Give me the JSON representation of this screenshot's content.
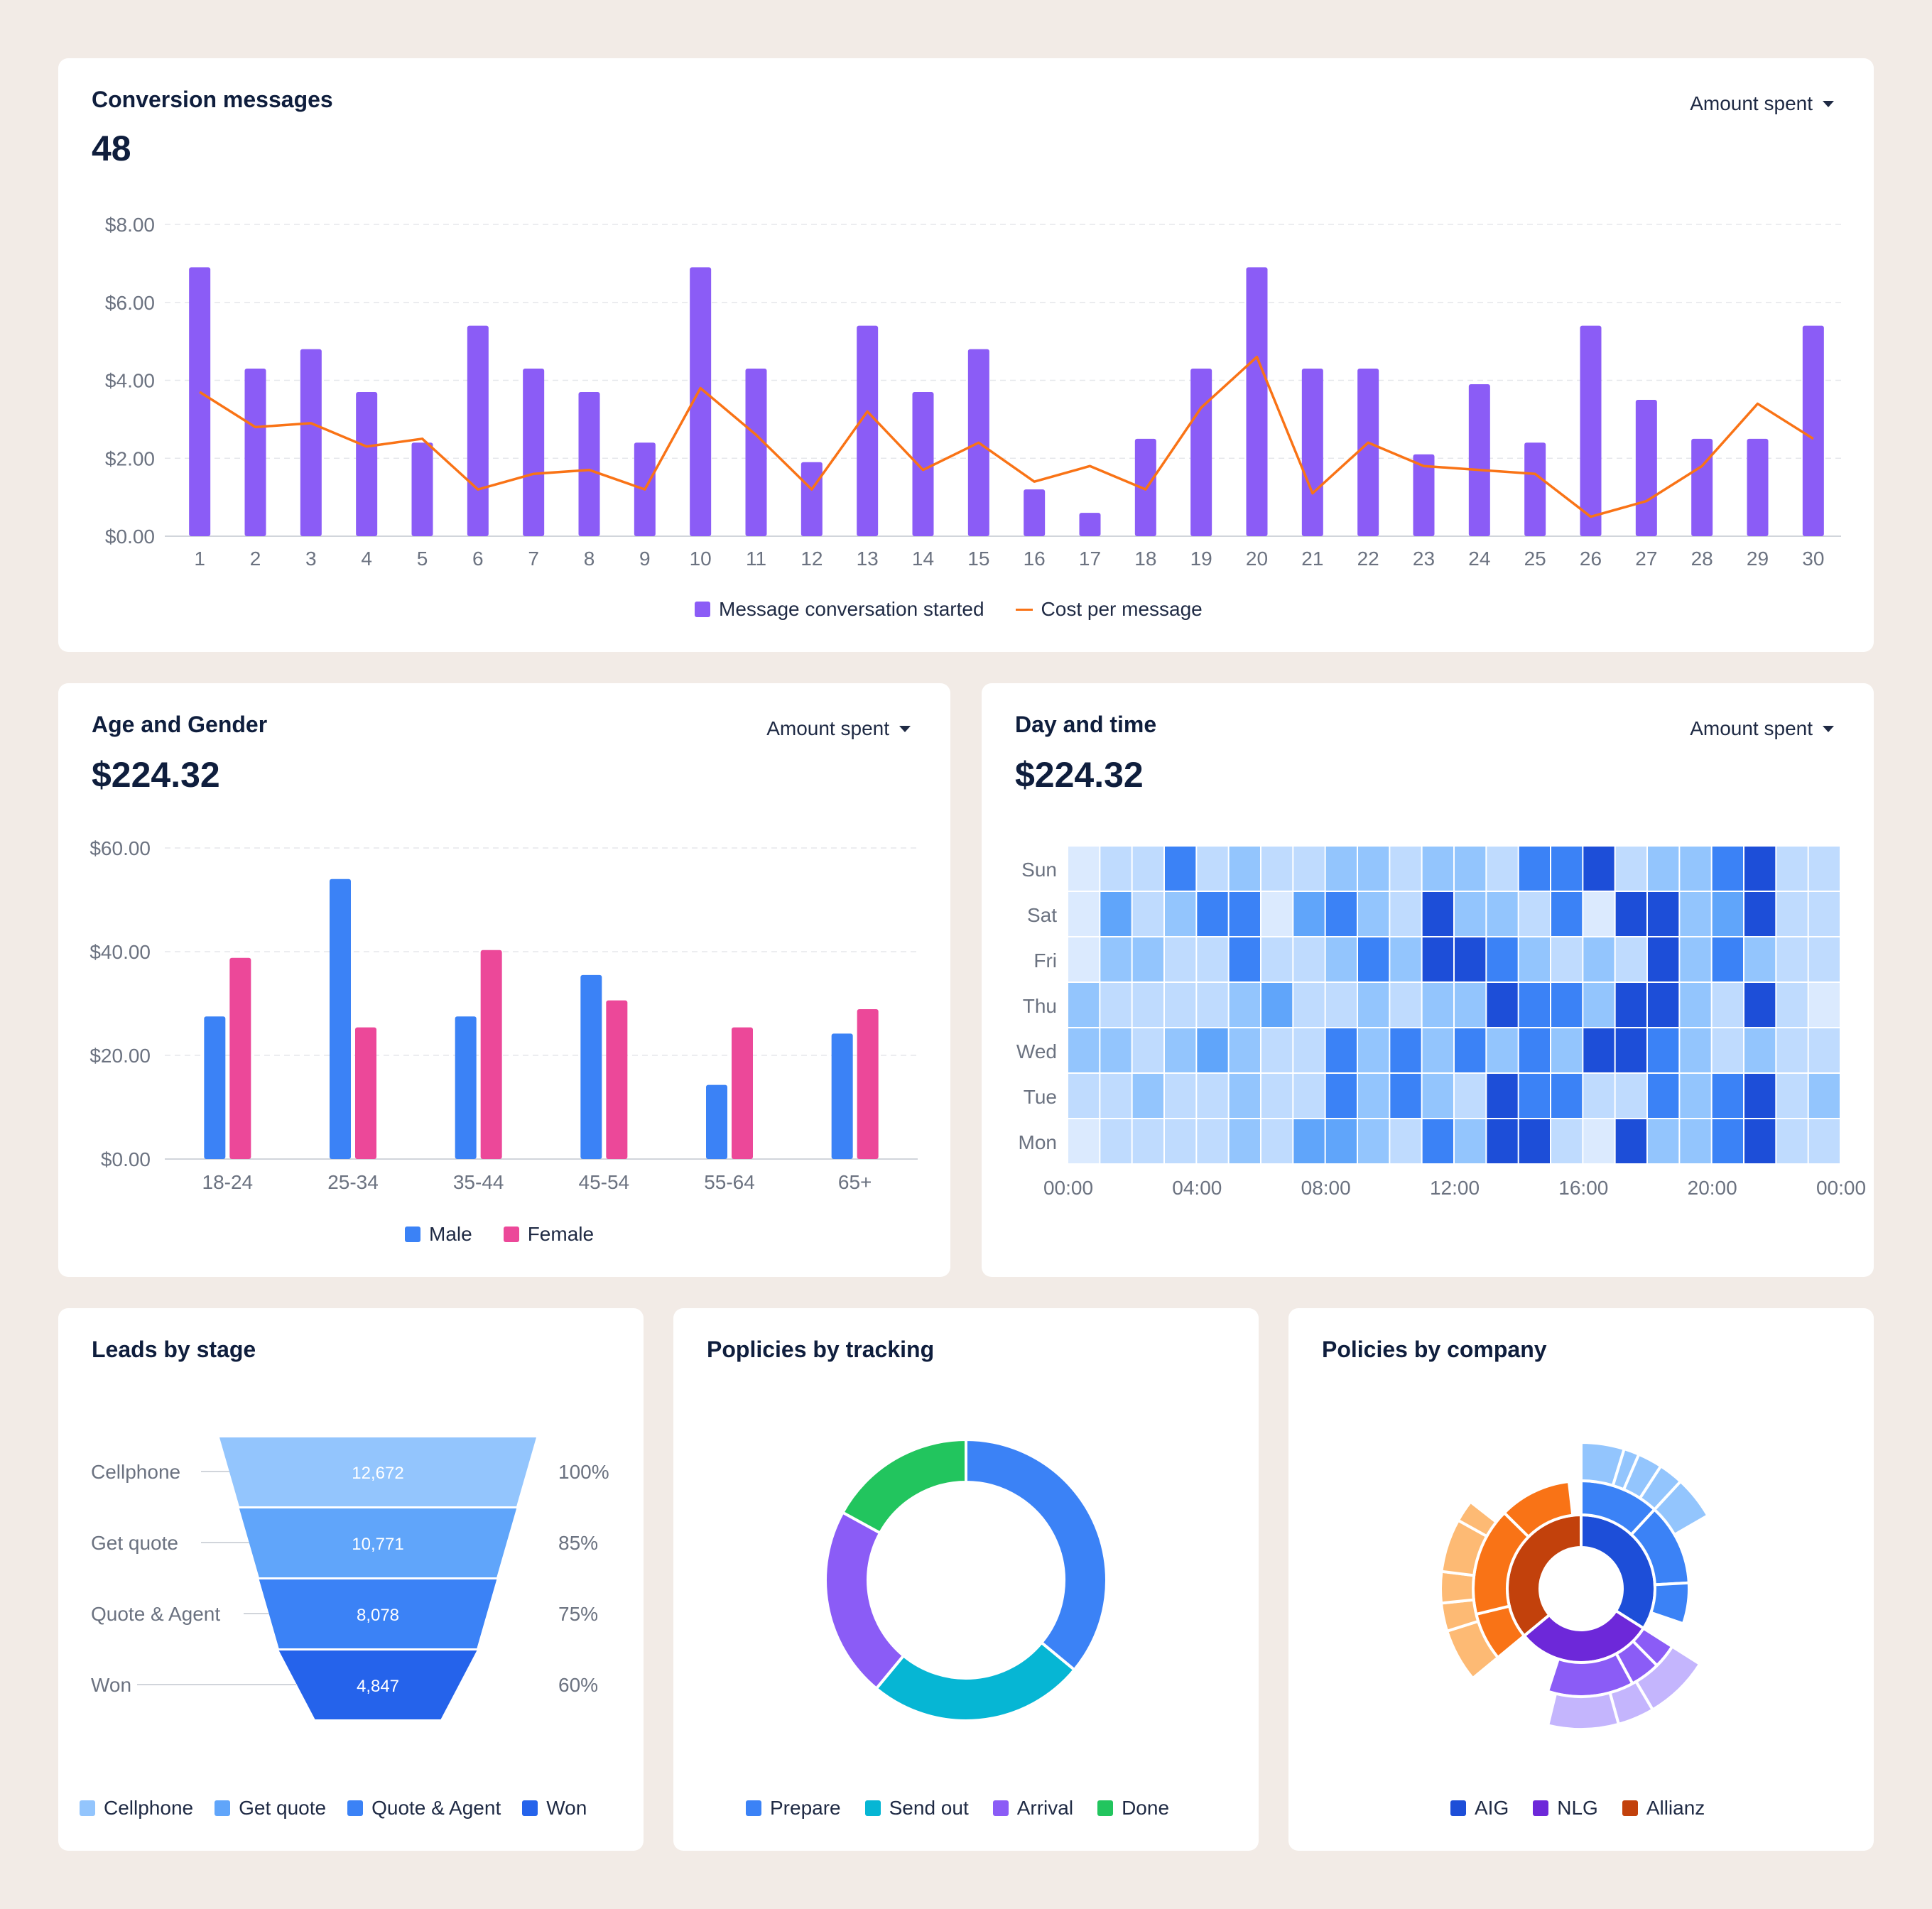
{
  "conversion": {
    "title": "Conversion messages",
    "value": "48",
    "dropdown": "Amount spent",
    "legend": {
      "bars": "Message conversation started",
      "line": "Cost per message"
    },
    "colors": {
      "bar": "#8b5cf6",
      "line": "#f97316"
    }
  },
  "age_gender": {
    "title": "Age and Gender",
    "value": "$224.32",
    "dropdown": "Amount spent",
    "legend": {
      "male": "Male",
      "female": "Female"
    },
    "colors": {
      "male": "#3b82f6",
      "female": "#ec4899"
    }
  },
  "day_time": {
    "title": "Day and time",
    "value": "$224.32",
    "dropdown": "Amount spent"
  },
  "leads": {
    "title": "Leads by stage",
    "legend": [
      "Cellphone",
      "Get quote",
      "Quote & Agent",
      "Won"
    ],
    "colors": [
      "#93c5fd",
      "#60a5fa",
      "#3b82f6",
      "#2563eb"
    ]
  },
  "tracking": {
    "title": "Poplicies by tracking",
    "legend": [
      "Prepare",
      "Send out",
      "Arrival",
      "Done"
    ],
    "colors": [
      "#3b82f6",
      "#06b6d4",
      "#8b5cf6",
      "#22c55e"
    ]
  },
  "company": {
    "title": "Policies by company",
    "legend": [
      "AIG",
      "NLG",
      "Allianz"
    ],
    "colors": [
      "#1d4ed8",
      "#6d28d9",
      "#c2410c"
    ]
  },
  "chart_data": [
    {
      "type": "bar",
      "id": "conversion",
      "categories": [
        "1",
        "2",
        "3",
        "4",
        "5",
        "6",
        "7",
        "8",
        "9",
        "10",
        "11",
        "12",
        "13",
        "14",
        "15",
        "16",
        "17",
        "18",
        "19",
        "20",
        "21",
        "22",
        "23",
        "24",
        "25",
        "26",
        "27",
        "28",
        "29",
        "30"
      ],
      "series": [
        {
          "name": "Message conversation started",
          "type": "bar",
          "values": [
            6.9,
            4.3,
            4.8,
            3.7,
            2.4,
            5.4,
            4.3,
            3.7,
            2.4,
            6.9,
            4.3,
            1.9,
            5.4,
            3.7,
            4.8,
            1.2,
            0.6,
            2.5,
            4.3,
            6.9,
            4.3,
            4.3,
            2.1,
            3.9,
            2.4,
            5.4,
            3.5,
            2.5,
            2.5,
            5.4
          ]
        },
        {
          "name": "Cost per message",
          "type": "line",
          "values": [
            3.7,
            2.8,
            2.9,
            2.3,
            2.5,
            1.2,
            1.6,
            1.7,
            1.2,
            3.8,
            2.6,
            1.2,
            3.2,
            1.7,
            2.4,
            1.4,
            1.8,
            1.2,
            3.3,
            4.6,
            1.1,
            2.4,
            1.8,
            1.7,
            1.6,
            0.5,
            0.9,
            1.8,
            3.4,
            2.5
          ]
        }
      ],
      "ylim": [
        0,
        8
      ],
      "yticks": [
        "$0.00",
        "$2.00",
        "$4.00",
        "$6.00",
        "$8.00"
      ],
      "grid": true
    },
    {
      "type": "bar",
      "id": "age_gender",
      "categories": [
        "18-24",
        "25-34",
        "35-44",
        "45-54",
        "55-64",
        "65+"
      ],
      "series": [
        {
          "name": "Male",
          "values": [
            27.5,
            54,
            27.5,
            35.5,
            14.3,
            24.2
          ]
        },
        {
          "name": "Female",
          "values": [
            38.8,
            25.4,
            40.3,
            30.6,
            25.4,
            28.9
          ]
        }
      ],
      "ylim": [
        0,
        60
      ],
      "yticks": [
        "$0.00",
        "$20.00",
        "$40.00",
        "$60.00"
      ],
      "grid": true
    },
    {
      "type": "heatmap",
      "id": "day_time",
      "rows": [
        "Sun",
        "Sat",
        "Fri",
        "Thu",
        "Wed",
        "Tue",
        "Mon"
      ],
      "x_ticks": [
        "00:00",
        "04:00",
        "08:00",
        "12:00",
        "16:00",
        "20:00",
        "00:00"
      ],
      "levels": [
        [
          0,
          1,
          1,
          4,
          1,
          2,
          1,
          1,
          2,
          2,
          1,
          2,
          2,
          1,
          4,
          4,
          5,
          1,
          2,
          2,
          4,
          5,
          1,
          1
        ],
        [
          0,
          3,
          1,
          2,
          4,
          4,
          0,
          3,
          4,
          2,
          1,
          5,
          2,
          2,
          1,
          4,
          0,
          5,
          5,
          2,
          3,
          5,
          1,
          1
        ],
        [
          0,
          2,
          2,
          1,
          1,
          4,
          1,
          1,
          2,
          4,
          2,
          5,
          5,
          4,
          2,
          1,
          2,
          1,
          5,
          2,
          4,
          2,
          1,
          1
        ],
        [
          2,
          1,
          1,
          1,
          1,
          2,
          3,
          1,
          1,
          2,
          1,
          2,
          2,
          5,
          4,
          4,
          2,
          5,
          5,
          2,
          1,
          5,
          1,
          0
        ],
        [
          2,
          2,
          1,
          2,
          3,
          2,
          1,
          1,
          4,
          2,
          4,
          2,
          4,
          2,
          4,
          2,
          5,
          5,
          4,
          2,
          1,
          2,
          1,
          1
        ],
        [
          1,
          1,
          2,
          1,
          1,
          2,
          1,
          1,
          4,
          2,
          4,
          2,
          1,
          5,
          4,
          4,
          1,
          1,
          4,
          2,
          4,
          5,
          1,
          2
        ],
        [
          0,
          1,
          1,
          1,
          1,
          2,
          1,
          3,
          3,
          2,
          1,
          4,
          2,
          5,
          5,
          1,
          0,
          5,
          2,
          2,
          4,
          5,
          1,
          1
        ]
      ],
      "level_colors": [
        "#dbeafe",
        "#bfdbfe",
        "#93c5fd",
        "#60a5fa",
        "#3b82f6",
        "#1d4ed8"
      ]
    },
    {
      "type": "funnel",
      "id": "leads",
      "categories": [
        "Cellphone",
        "Get quote",
        "Quote & Agent",
        "Won"
      ],
      "values": [
        12672,
        10771,
        8078,
        4847
      ],
      "value_labels": [
        "12,672",
        "10,771",
        "8,078",
        "4,847"
      ],
      "percent_labels": [
        "100%",
        "85%",
        "75%",
        "60%"
      ]
    },
    {
      "type": "pie",
      "id": "tracking",
      "categories": [
        "Prepare",
        "Send out",
        "Arrival",
        "Done"
      ],
      "values": [
        36,
        25,
        22,
        17
      ],
      "donut": true
    },
    {
      "type": "sunburst",
      "id": "company",
      "categories": [
        "AIG",
        "NLG",
        "Allianz"
      ],
      "values": [
        34,
        30,
        36
      ],
      "rings": {
        "AIG": {
          "level2": [
            35,
            36,
            18
          ],
          "level3": [
            14,
            5,
            8,
            8,
            14
          ]
        },
        "NLG": {
          "level2": [
            12,
            15,
            43
          ],
          "level3": [
            25,
            14,
            27
          ]
        },
        "Allianz": {
          "level2": [
            20,
            45,
            30
          ],
          "level3": [
            17,
            9,
            10,
            17,
            7
          ]
        }
      }
    }
  ]
}
